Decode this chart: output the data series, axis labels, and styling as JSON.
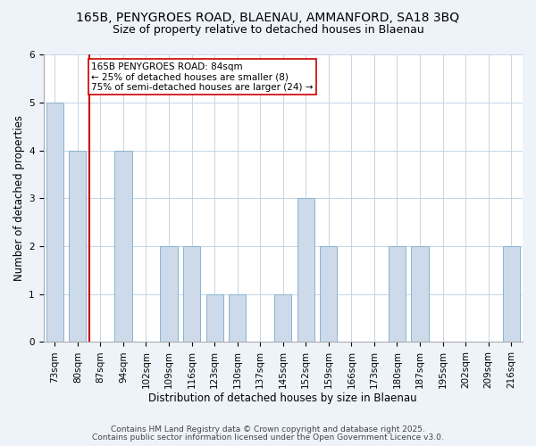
{
  "title1": "165B, PENYGROES ROAD, BLAENAU, AMMANFORD, SA18 3BQ",
  "title2": "Size of property relative to detached houses in Blaenau",
  "xlabel": "Distribution of detached houses by size in Blaenau",
  "ylabel": "Number of detached properties",
  "categories": [
    "73sqm",
    "80sqm",
    "87sqm",
    "94sqm",
    "102sqm",
    "109sqm",
    "116sqm",
    "123sqm",
    "130sqm",
    "137sqm",
    "145sqm",
    "152sqm",
    "159sqm",
    "166sqm",
    "173sqm",
    "180sqm",
    "187sqm",
    "195sqm",
    "202sqm",
    "209sqm",
    "216sqm"
  ],
  "values": [
    5,
    4,
    0,
    4,
    0,
    2,
    2,
    1,
    1,
    0,
    1,
    3,
    2,
    0,
    0,
    2,
    2,
    0,
    0,
    0,
    2
  ],
  "bar_color": "#ccdaea",
  "bar_edge_color": "#88b4d0",
  "property_line_x": 1.5,
  "property_line_color": "#cc0000",
  "annotation_text": "165B PENYGROES ROAD: 84sqm\n← 25% of detached houses are smaller (8)\n75% of semi-detached houses are larger (24) →",
  "annotation_box_color": "white",
  "annotation_box_edge_color": "#cc0000",
  "ylim": [
    0,
    6
  ],
  "yticks": [
    0,
    1,
    2,
    3,
    4,
    5,
    6
  ],
  "footer1": "Contains HM Land Registry data © Crown copyright and database right 2025.",
  "footer2": "Contains public sector information licensed under the Open Government Licence v3.0.",
  "bg_color": "#eef3fa",
  "plot_bg_color": "#ffffff",
  "title_fontsize": 10,
  "subtitle_fontsize": 9,
  "axis_label_fontsize": 8.5,
  "tick_fontsize": 7.5,
  "annotation_fontsize": 7.5,
  "footer_fontsize": 6.5
}
